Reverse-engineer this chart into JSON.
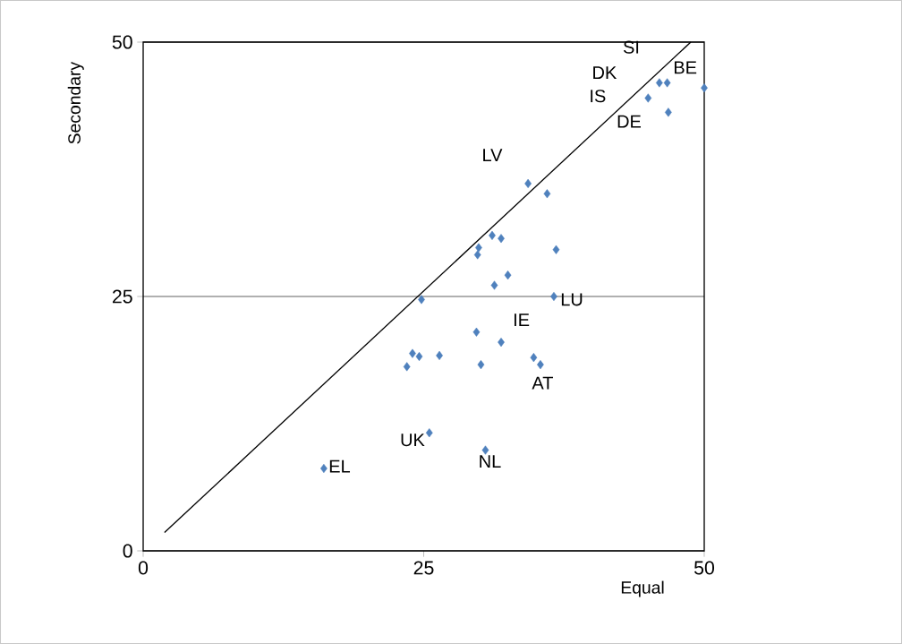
{
  "chart_data": {
    "type": "scatter",
    "xlabel": "Equal",
    "ylabel": "Secondary",
    "xlim": [
      0,
      50
    ],
    "ylim": [
      0,
      50
    ],
    "xticks": [
      0,
      25,
      50
    ],
    "yticks": [
      0,
      25,
      50
    ],
    "grid": "y",
    "series": [
      {
        "color": "#4f81bd",
        "marker": "diamond",
        "x": [
          16.1,
          25.5,
          30.5,
          24.0,
          23.5,
          24.6,
          26.4,
          30.1,
          29.7,
          31.9,
          34.8,
          35.4,
          24.8,
          36.6,
          31.3,
          32.5,
          29.8,
          29.9,
          31.1,
          31.9,
          36.8,
          34.3,
          36.0,
          45.0,
          46.0,
          46.7,
          46.8,
          50.0
        ],
        "values": [
          8.1,
          11.6,
          9.9,
          19.4,
          18.1,
          19.1,
          19.2,
          18.3,
          21.5,
          20.5,
          19.0,
          18.3,
          24.7,
          25.0,
          26.1,
          27.1,
          29.1,
          29.8,
          31.0,
          30.7,
          29.6,
          36.1,
          35.1,
          44.5,
          46.0,
          46.0,
          43.1,
          45.5
        ]
      },
      {
        "type": "line",
        "color": "#000000",
        "marker": "none",
        "line_style": "solid",
        "x": [
          1.9,
          48.8
        ],
        "values": [
          1.8,
          50.0
        ]
      }
    ],
    "annotations": [
      "SI",
      "DK",
      "IS",
      "DE",
      "BE",
      "LV",
      "LU",
      "IE",
      "AT",
      "UK",
      "NL",
      "EL"
    ]
  }
}
